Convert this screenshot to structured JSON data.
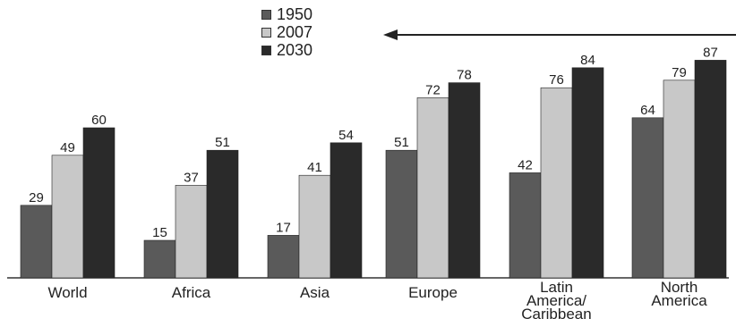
{
  "chart_data": {
    "type": "bar",
    "categories": [
      "World",
      "Africa",
      "Asia",
      "Europe",
      "Latin America/ Caribbean",
      "North America"
    ],
    "category_lines": [
      [
        "World"
      ],
      [
        "Africa"
      ],
      [
        "Asia"
      ],
      [
        "Europe"
      ],
      [
        "Latin",
        "America/",
        "Caribbean"
      ],
      [
        "North",
        "America"
      ]
    ],
    "series": [
      {
        "name": "1950",
        "values": [
          29,
          15,
          17,
          51,
          42,
          64
        ],
        "color": "#5a5a5a"
      },
      {
        "name": "2007",
        "values": [
          49,
          37,
          41,
          72,
          76,
          79
        ],
        "color": "#c8c8c8"
      },
      {
        "name": "2030",
        "values": [
          60,
          51,
          54,
          78,
          84,
          87
        ],
        "color": "#2a2a2a"
      }
    ],
    "ylim": [
      0,
      100
    ],
    "legend_position": "top-center",
    "grid": false
  },
  "legend": {
    "items": [
      {
        "label": "1950"
      },
      {
        "label": "2007"
      },
      {
        "label": "2030"
      }
    ]
  }
}
